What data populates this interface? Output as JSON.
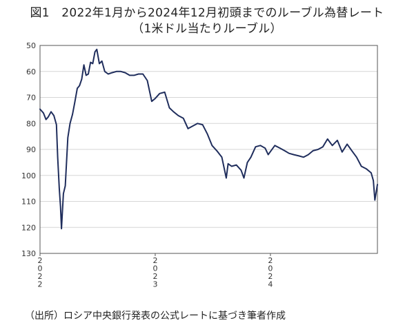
{
  "figure": {
    "title_line1": "図1　2022年1月から2024年12月初頭までのルーブル為替レート",
    "title_line2": "（1米ドル当たりルーブル）",
    "source": "（出所）ロシア中央銀行発表の公式レートに基づき筆者作成"
  },
  "chart_data": {
    "type": "line",
    "title": "2022年1月から2024年12月初頭までのルーブル為替レート",
    "subtitle": "（1米ドル当たりルーブル）",
    "ylim": [
      50,
      130
    ],
    "y_inverted": true,
    "y_ticks": [
      50,
      60,
      70,
      80,
      90,
      100,
      110,
      120,
      130
    ],
    "y_tick_labels": [
      "50",
      "60",
      "70",
      "80",
      "90",
      "100",
      "110",
      "120",
      "130"
    ],
    "x_range": [
      "2022-01-01",
      "2024-12-05"
    ],
    "x_tick_labels": [
      {
        "date": "2022-01-01",
        "chars": [
          "2",
          "0",
          "2",
          "2"
        ]
      },
      {
        "date": "2023-01-01",
        "chars": [
          "2",
          "0",
          "2",
          "3"
        ]
      },
      {
        "date": "2024-01-01",
        "chars": [
          "2",
          "0",
          "2",
          "4"
        ]
      }
    ],
    "grid": true,
    "legend": "none",
    "line_color": "#1f2d5c",
    "series": [
      {
        "x": [
          "2022-01-01",
          "2022-01-12",
          "2022-01-20",
          "2022-01-27",
          "2022-02-05",
          "2022-02-14",
          "2022-02-22",
          "2022-02-26",
          "2022-03-03",
          "2022-03-07",
          "2022-03-10",
          "2022-03-16",
          "2022-03-22",
          "2022-03-30",
          "2022-04-06",
          "2022-04-14",
          "2022-04-21",
          "2022-04-29",
          "2022-05-06",
          "2022-05-13",
          "2022-05-20",
          "2022-05-27",
          "2022-06-03",
          "2022-06-10",
          "2022-06-17",
          "2022-06-24",
          "2022-06-30",
          "2022-07-08",
          "2022-07-16",
          "2022-07-25",
          "2022-08-05",
          "2022-08-17",
          "2022-08-31",
          "2022-09-14",
          "2022-09-28",
          "2022-10-12",
          "2022-10-26",
          "2022-11-09",
          "2022-11-23",
          "2022-12-07",
          "2022-12-21",
          "2022-12-31",
          "2023-01-15",
          "2023-01-31",
          "2023-02-15",
          "2023-02-28",
          "2023-03-15",
          "2023-03-31",
          "2023-04-15",
          "2023-04-30",
          "2023-05-15",
          "2023-05-31",
          "2023-06-15",
          "2023-06-30",
          "2023-07-15",
          "2023-07-31",
          "2023-08-14",
          "2023-08-20",
          "2023-08-31",
          "2023-09-15",
          "2023-09-30",
          "2023-10-09",
          "2023-10-20",
          "2023-10-31",
          "2023-11-15",
          "2023-11-30",
          "2023-12-15",
          "2023-12-25",
          "2024-01-15",
          "2024-01-31",
          "2024-02-15",
          "2024-02-29",
          "2024-03-15",
          "2024-03-31",
          "2024-04-15",
          "2024-04-30",
          "2024-05-15",
          "2024-05-31",
          "2024-06-15",
          "2024-06-30",
          "2024-07-15",
          "2024-07-31",
          "2024-08-15",
          "2024-08-31",
          "2024-09-15",
          "2024-09-30",
          "2024-10-15",
          "2024-10-31",
          "2024-11-15",
          "2024-11-22",
          "2024-11-27",
          "2024-12-05"
        ],
        "values": [
          74.5,
          76.0,
          78.5,
          77.5,
          75.5,
          77.0,
          80.5,
          93.0,
          105.0,
          112.0,
          120.5,
          107.0,
          104.0,
          85.5,
          80.0,
          76.5,
          72.0,
          66.5,
          65.5,
          63.0,
          57.5,
          61.5,
          61.0,
          56.5,
          57.0,
          52.5,
          51.5,
          57.0,
          56.0,
          60.0,
          61.0,
          60.5,
          60.0,
          60.0,
          60.5,
          61.5,
          61.5,
          61.0,
          61.0,
          63.5,
          71.5,
          70.5,
          68.5,
          68.0,
          74.0,
          75.5,
          77.0,
          78.0,
          82.0,
          81.0,
          80.0,
          80.5,
          84.0,
          88.5,
          90.5,
          93.0,
          101.0,
          95.5,
          96.5,
          96.0,
          98.0,
          101.0,
          95.0,
          93.0,
          89.0,
          88.5,
          89.5,
          92.0,
          88.5,
          89.5,
          90.5,
          91.5,
          92.0,
          92.5,
          93.0,
          92.0,
          90.5,
          90.0,
          89.0,
          86.0,
          88.5,
          86.5,
          91.0,
          88.0,
          90.5,
          93.0,
          96.5,
          97.5,
          99.0,
          102.0,
          109.5,
          103.5
        ]
      }
    ]
  }
}
